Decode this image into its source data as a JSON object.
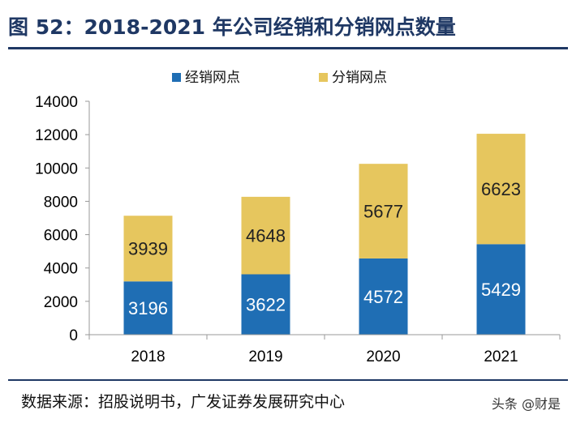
{
  "title": "图 52：2018-2021 年公司经销和分销网点数量",
  "source": "数据来源：招股说明书，广发证券发展研究中心",
  "watermark": "头条 @财是",
  "chart_data": {
    "type": "bar",
    "stacked": true,
    "categories": [
      "2018",
      "2019",
      "2020",
      "2021"
    ],
    "series": [
      {
        "name": "经销网点",
        "values": [
          3196,
          3622,
          4572,
          5429
        ],
        "color": "#1f6eb4",
        "label_color": "#ffffff"
      },
      {
        "name": "分销网点",
        "values": [
          3939,
          4648,
          5677,
          6623
        ],
        "color": "#e6c65e",
        "label_color": "#222222"
      }
    ],
    "ylim": [
      0,
      14000
    ],
    "yticks": [
      0,
      2000,
      4000,
      6000,
      8000,
      10000,
      12000,
      14000
    ],
    "xlabel": "",
    "ylabel": "",
    "legend_position": "top",
    "grid": false
  }
}
